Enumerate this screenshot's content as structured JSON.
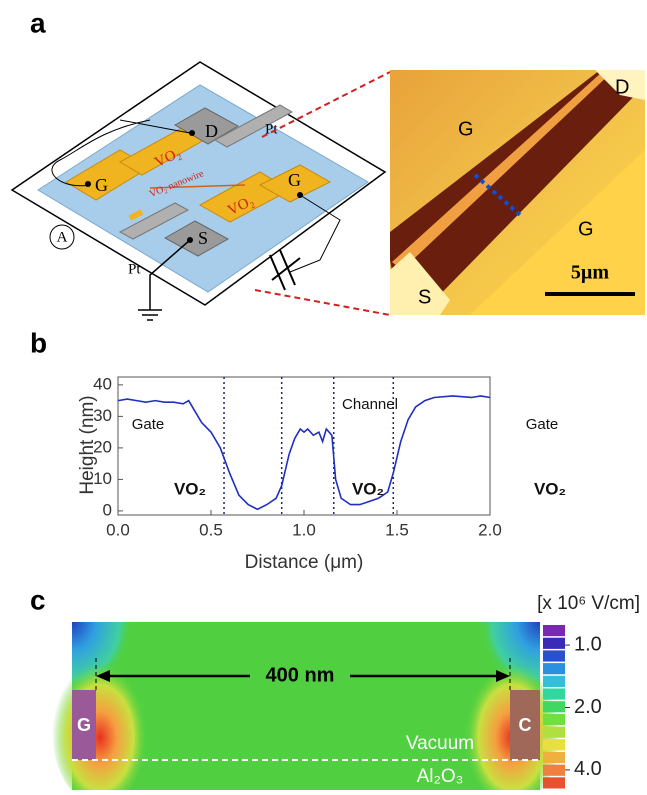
{
  "panels": {
    "a": {
      "label": "a",
      "schematic": {
        "labels": [
          "D",
          "G",
          "G",
          "S",
          "Pt",
          "Pt",
          "VO₂",
          "VO₂",
          "VO₂ nanowire",
          "A"
        ]
      },
      "afm": {
        "labels": [
          "G",
          "G",
          "D",
          "S"
        ],
        "scale_bar": "5µm"
      }
    },
    "b": {
      "label": "b"
    },
    "c": {
      "label": "c",
      "colorbar_title": "[x 10⁶ V/cm]",
      "colorbar_lim": [
        0.8,
        5
      ],
      "colorbar_log": true,
      "colorbar_ticks": [
        {
          "value": 1,
          "label": "1.0"
        },
        {
          "value": 2,
          "label": "2.0"
        },
        {
          "value": 4,
          "label": "4.0"
        }
      ],
      "dimension": "400 nm",
      "electrodes": [
        "G",
        "C"
      ],
      "regions": [
        "Vacuum",
        "Al₂O₃"
      ]
    }
  },
  "chart_data": {
    "type": "line",
    "xlabel": "Distance (μm)",
    "ylabel": "Height (nm)",
    "x": [
      0,
      0.05,
      0.1,
      0.15,
      0.2,
      0.25,
      0.3,
      0.35,
      0.38,
      0.4,
      0.45,
      0.5,
      0.55,
      0.6,
      0.65,
      0.7,
      0.75,
      0.8,
      0.85,
      0.88,
      0.92,
      0.95,
      0.98,
      1.0,
      1.02,
      1.05,
      1.08,
      1.1,
      1.12,
      1.15,
      1.17,
      1.2,
      1.25,
      1.3,
      1.35,
      1.4,
      1.45,
      1.48,
      1.52,
      1.56,
      1.6,
      1.65,
      1.7,
      1.8,
      1.9,
      1.95,
      2.0
    ],
    "values": [
      35,
      35.5,
      35,
      34.5,
      35,
      34.5,
      34.5,
      34,
      35,
      33,
      28,
      25,
      20,
      12,
      5,
      2,
      0.5,
      2,
      4,
      8,
      18,
      23,
      26,
      25,
      26,
      24,
      25,
      22,
      26,
      24,
      10,
      4,
      2,
      2,
      3,
      4,
      6,
      12,
      22,
      29,
      33,
      35,
      36,
      36.5,
      36,
      36.5,
      36
    ],
    "color": "#1f2fbf",
    "xlim": [
      0,
      2
    ],
    "ylim": [
      -1.3,
      42.5
    ],
    "xticks": [
      {
        "value": 0,
        "label": "0.0"
      },
      {
        "value": 0.5,
        "label": "0.5"
      },
      {
        "value": 1,
        "label": "1.0"
      },
      {
        "value": 1.5,
        "label": "1.5"
      },
      {
        "value": 2,
        "label": "2.0"
      }
    ],
    "yticks": [
      0,
      10,
      20,
      30,
      40
    ],
    "region_boundaries": [
      0.57,
      0.88,
      1.16,
      1.48
    ],
    "annotations": [
      "Gate",
      "Channel",
      "Gate",
      "VO₂",
      "VO₂",
      "VO₂"
    ]
  }
}
